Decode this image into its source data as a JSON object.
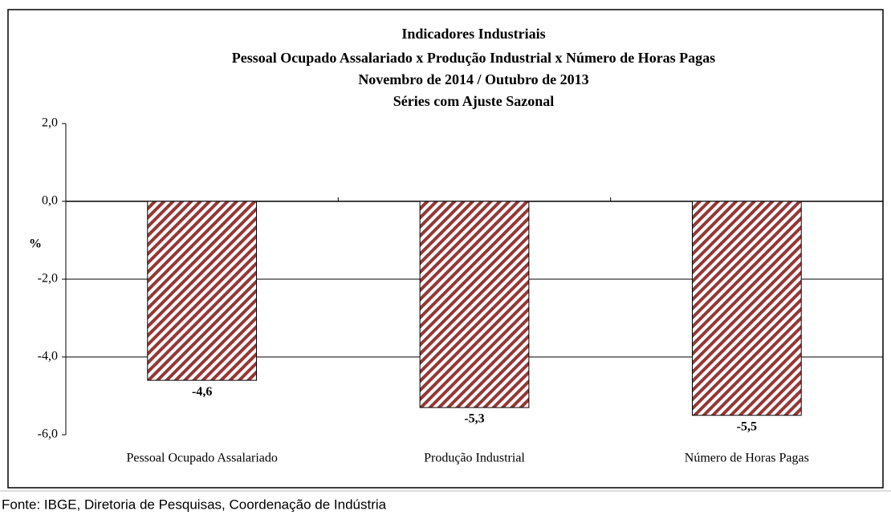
{
  "chart_data": {
    "type": "bar",
    "title": [
      "Indicadores Industriais",
      "Pessoal Ocupado  Assalariado x Produção Industrial x Número de Horas Pagas",
      "Novembro de 2014 / Outubro de 2013",
      "Séries com Ajuste Sazonal"
    ],
    "y_label": "%",
    "categories": [
      "Pessoal Ocupado Assalariado",
      "Produção Industrial",
      "Número de Horas Pagas"
    ],
    "values": [
      -4.6,
      -5.3,
      -5.5
    ],
    "value_labels": [
      "-4,6",
      "-5,3",
      "-5,5"
    ],
    "color": "#953735",
    "ylim": [
      -6,
      2
    ],
    "yticks": [
      {
        "value": -6,
        "label": "-6,0"
      },
      {
        "value": -4,
        "label": "-4,0"
      },
      {
        "value": -2,
        "label": "-2,0"
      },
      {
        "value": 0,
        "label": "0,0"
      },
      {
        "value": 2,
        "label": "2,0"
      }
    ],
    "grid": true
  },
  "footer": "Fonte: IBGE, Diretoria de Pesquisas, Coordenação de Indústria"
}
